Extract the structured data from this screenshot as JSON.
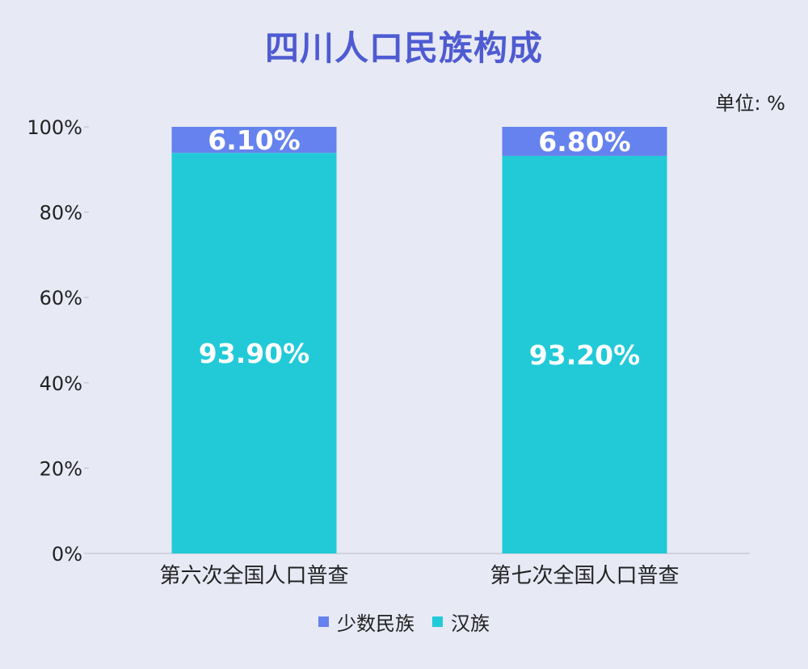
{
  "chart_data": {
    "type": "bar",
    "stacked": true,
    "title": "四川人口民族构成",
    "unit_label": "单位: %",
    "categories": [
      "第六次全国人口普查",
      "第七次全国人口普查"
    ],
    "series": [
      {
        "name": "汉族",
        "values": [
          93.9,
          93.2
        ],
        "labels": [
          "93.90%",
          "93.20%"
        ],
        "color": "#22cad8"
      },
      {
        "name": "少数民族",
        "values": [
          6.1,
          6.8
        ],
        "labels": [
          "6.10%",
          "6.80%"
        ],
        "color": "#6682ee"
      }
    ],
    "legend_order": [
      "少数民族",
      "汉族"
    ],
    "yticks": [
      "0%",
      "20%",
      "40%",
      "60%",
      "80%",
      "100%"
    ],
    "ylim": [
      0,
      100
    ],
    "grid": false,
    "legend_position": "bottom"
  }
}
